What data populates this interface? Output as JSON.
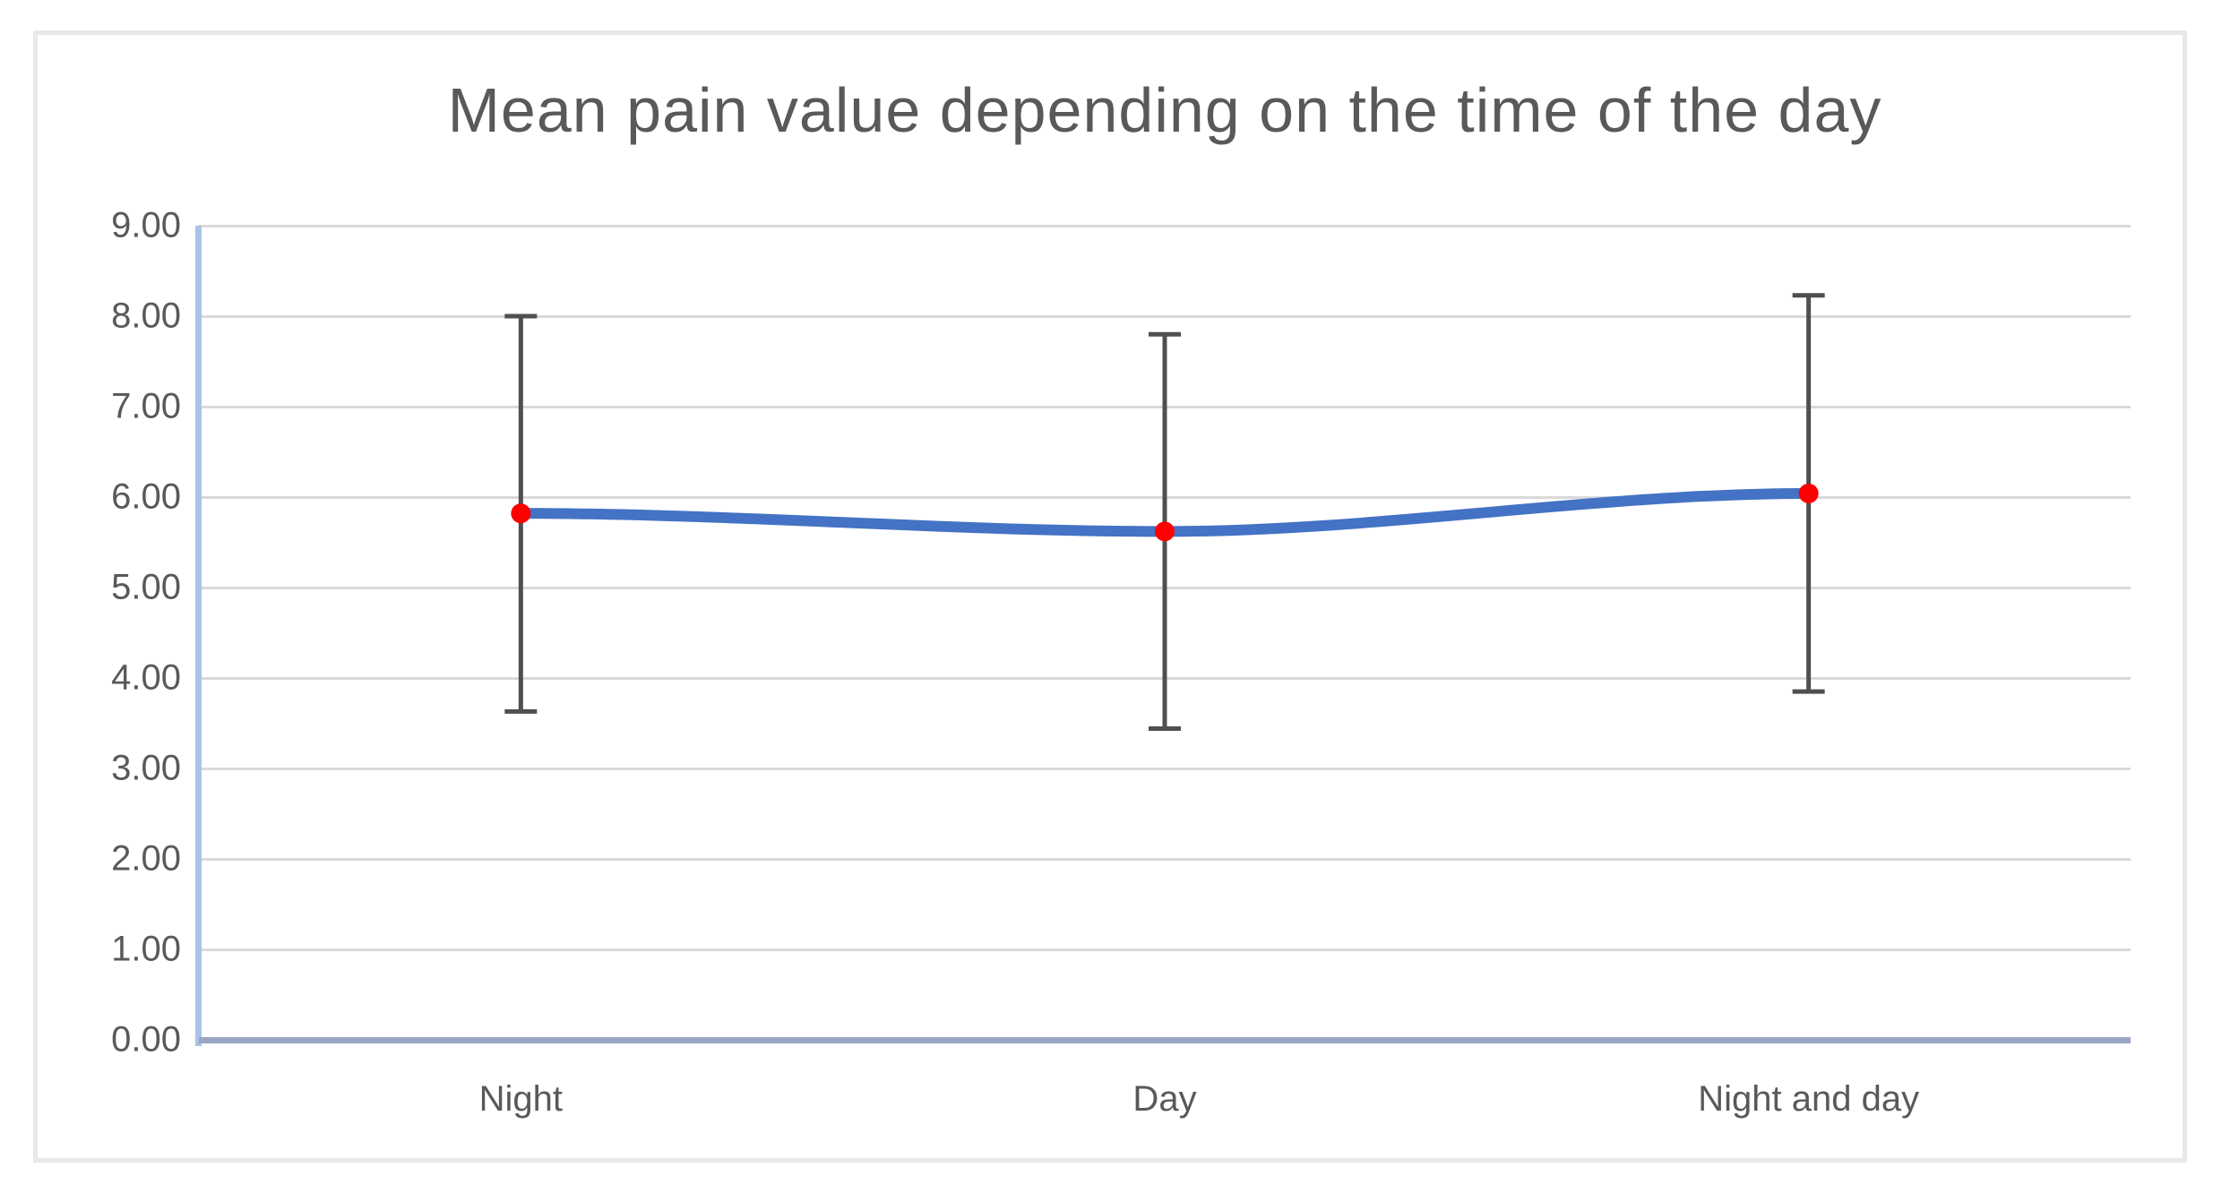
{
  "chart_data": {
    "type": "line",
    "title": "Mean pain value depending on the time of the day",
    "categories": [
      "Night",
      "Day",
      "Night and day"
    ],
    "series": [
      {
        "name": "Mean pain value",
        "values": [
          5.82,
          5.62,
          6.04
        ],
        "error_upper": [
          8.0,
          7.8,
          8.23
        ],
        "error_lower": [
          3.63,
          3.44,
          3.85
        ]
      }
    ],
    "xlabel": "",
    "ylabel": "",
    "ylim": [
      0,
      9
    ],
    "ytick_step": 1,
    "ytick_labels": [
      "0.00",
      "1.00",
      "2.00",
      "3.00",
      "4.00",
      "5.00",
      "6.00",
      "7.00",
      "8.00",
      "9.00"
    ],
    "grid": "horizontal-only",
    "legend_position": "none",
    "marker": "circle",
    "colors": {
      "series_line": "#4472c4",
      "marker": "#ff0000",
      "error_bar": "#4f4f4f",
      "gridline": "#d9d9d9",
      "value_axis_line": "#a8c3e6",
      "category_axis_line": "#9aa5c4",
      "text": "#595959",
      "frame_border": "#e9e9e9"
    }
  }
}
